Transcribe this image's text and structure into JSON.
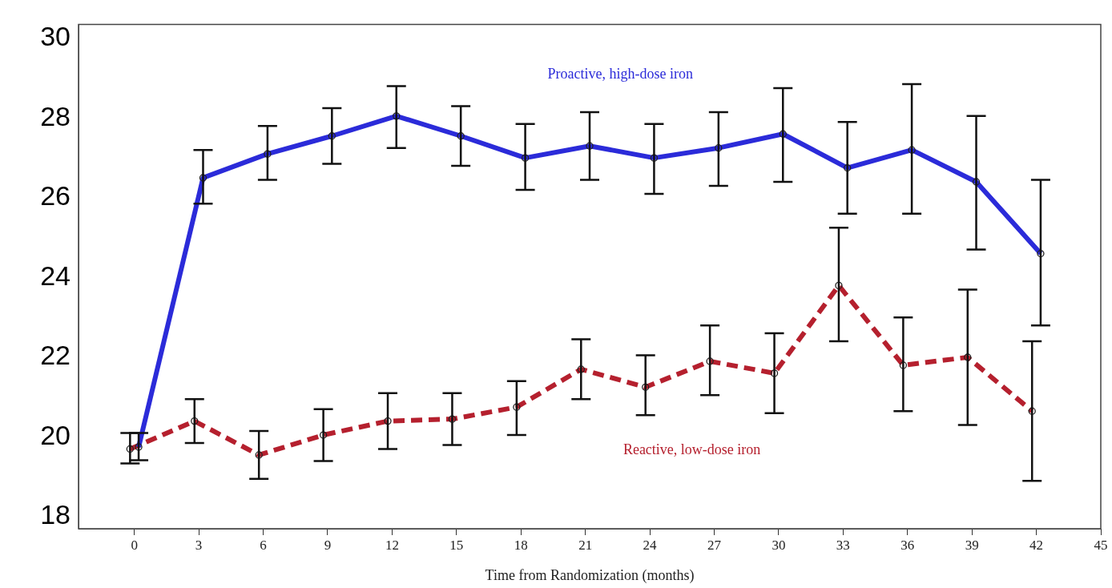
{
  "chart_data": {
    "type": "line",
    "xlabel": "Time from Randomization (months)",
    "xlim": [
      -2.6,
      45
    ],
    "xticks": [
      0,
      3,
      6,
      9,
      12,
      15,
      18,
      21,
      24,
      27,
      30,
      33,
      36,
      39,
      42,
      45
    ],
    "ylim": [
      17.7,
      30.35
    ],
    "yticks": [
      18,
      20,
      22,
      24,
      26,
      28,
      30
    ],
    "grid": false,
    "legend": false,
    "marker": "circle",
    "series": [
      {
        "name": "Proactive, high-dose iron",
        "color": "#2b2bd9",
        "line_style": "solid",
        "x": [
          0.2,
          3.2,
          6.2,
          9.2,
          12.2,
          15.2,
          18.2,
          21.2,
          24.2,
          27.2,
          30.2,
          33.2,
          36.2,
          39.2,
          42.2
        ],
        "values": [
          19.75,
          26.5,
          27.1,
          27.55,
          28.05,
          27.55,
          27.0,
          27.3,
          27.0,
          27.25,
          27.6,
          26.75,
          27.2,
          26.4,
          24.6
        ],
        "errors": [
          [
            19.42,
            20.1
          ],
          [
            25.85,
            27.2
          ],
          [
            26.45,
            27.8
          ],
          [
            26.85,
            28.25
          ],
          [
            27.25,
            28.8
          ],
          [
            26.8,
            28.3
          ],
          [
            26.2,
            27.85
          ],
          [
            26.45,
            28.15
          ],
          [
            26.1,
            27.85
          ],
          [
            26.3,
            28.15
          ],
          [
            26.4,
            28.75
          ],
          [
            25.6,
            27.9
          ],
          [
            25.6,
            28.85
          ],
          [
            24.7,
            28.05
          ],
          [
            22.8,
            26.45
          ]
        ]
      },
      {
        "name": "Reactive, low-dose iron",
        "color": "#b5202e",
        "line_style": "dashed",
        "x": [
          -0.2,
          2.8,
          5.8,
          8.8,
          11.8,
          14.8,
          17.8,
          20.8,
          23.8,
          26.8,
          29.8,
          32.8,
          35.8,
          38.8,
          41.8
        ],
        "values": [
          19.7,
          20.4,
          19.55,
          20.05,
          20.4,
          20.45,
          20.75,
          21.7,
          21.25,
          21.9,
          21.6,
          23.8,
          21.8,
          22.0,
          20.65
        ],
        "errors": [
          [
            19.34,
            20.1
          ],
          [
            19.85,
            20.95
          ],
          [
            18.95,
            20.15
          ],
          [
            19.4,
            20.7
          ],
          [
            19.7,
            21.1
          ],
          [
            19.8,
            21.1
          ],
          [
            20.05,
            21.4
          ],
          [
            20.95,
            22.45
          ],
          [
            20.55,
            22.05
          ],
          [
            21.05,
            22.8
          ],
          [
            20.6,
            22.6
          ],
          [
            22.4,
            25.25
          ],
          [
            20.65,
            23.0
          ],
          [
            20.3,
            23.7
          ],
          [
            18.9,
            22.4
          ]
        ]
      }
    ]
  }
}
